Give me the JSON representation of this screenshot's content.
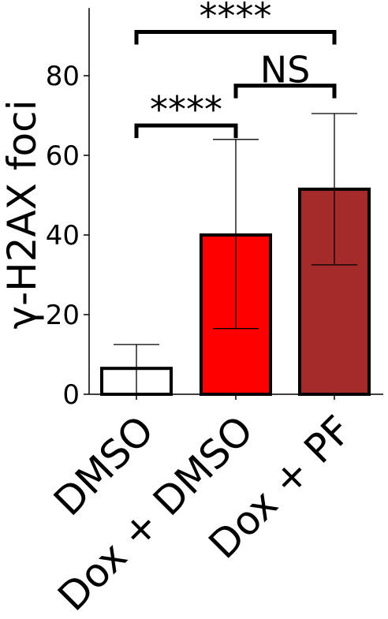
{
  "chart_data": {
    "type": "bar",
    "title": "",
    "xlabel": "",
    "ylabel": "γ-H2AX foci",
    "ylim": [
      0,
      97
    ],
    "yticks": [
      0,
      20,
      40,
      60,
      80
    ],
    "grid": false,
    "categories": [
      "DMSO",
      "Dox + DMSO",
      "Dox + PF"
    ],
    "values": [
      6.5,
      40,
      51.5
    ],
    "error_upper": [
      12.5,
      64,
      70.5
    ],
    "error_lower": [
      0,
      16.5,
      32.5
    ],
    "colors": [
      "#ffffff",
      "#ff0000",
      "#a52a2a"
    ],
    "edge_color": "#000000",
    "significance": [
      {
        "from": 0,
        "to": 1,
        "label": "****",
        "level": 67.5
      },
      {
        "from": 1,
        "to": 2,
        "label": "NS",
        "level": 77.5
      },
      {
        "from": 0,
        "to": 2,
        "label": "****",
        "level": 91
      }
    ]
  }
}
